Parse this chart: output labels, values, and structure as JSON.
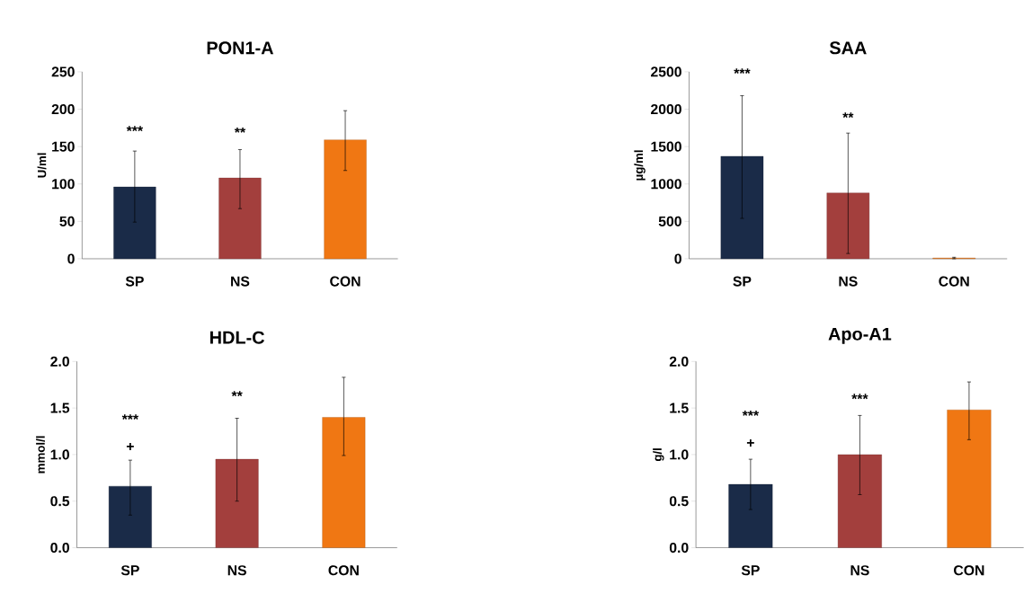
{
  "chart_data": [
    {
      "type": "bar",
      "title": "PON1-A",
      "ylabel": "U/ml",
      "categories": [
        "SP",
        "NS",
        "CON"
      ],
      "values": [
        96,
        108,
        159
      ],
      "colors": [
        "#1a2b48",
        "#a33f3d",
        "#f07713"
      ],
      "errors": [
        [
          49,
          144
        ],
        [
          67,
          146
        ],
        [
          118,
          198
        ]
      ],
      "ylim": [
        0,
        250
      ],
      "yticks": [
        0,
        50,
        100,
        150,
        200,
        250
      ],
      "annotations": [
        "***",
        "**"
      ]
    },
    {
      "type": "bar",
      "title": "SAA",
      "ylabel": "µg/ml",
      "categories": [
        "SP",
        "NS",
        "CON"
      ],
      "values": [
        1370,
        880,
        10
      ],
      "colors": [
        "#1a2b48",
        "#a33f3d",
        "#f07713"
      ],
      "errors": [
        [
          540,
          2180
        ],
        [
          70,
          1680
        ],
        [
          0,
          20
        ]
      ],
      "ylim": [
        0,
        2500
      ],
      "yticks": [
        0,
        500,
        1000,
        1500,
        2000,
        2500
      ],
      "annotations": [
        "***",
        "**"
      ]
    },
    {
      "type": "bar",
      "title": "HDL-C",
      "ylabel": "mmol/l",
      "categories": [
        "SP",
        "NS",
        "CON"
      ],
      "values": [
        0.66,
        0.95,
        1.4
      ],
      "colors": [
        "#1a2b48",
        "#a33f3d",
        "#f07713"
      ],
      "errors": [
        [
          0.35,
          0.94
        ],
        [
          0.5,
          1.39
        ],
        [
          0.99,
          1.83
        ]
      ],
      "ylim": [
        0,
        2
      ],
      "yticks": [
        {
          "value": 0,
          "label": "0.0"
        },
        0.5,
        {
          "value": 1,
          "label": "1.0"
        },
        1.5,
        {
          "value": 2,
          "label": "2.0"
        }
      ],
      "annotations": [
        "***",
        "+",
        "**"
      ]
    },
    {
      "type": "bar",
      "title": "Apo-A1",
      "ylabel": "g/l",
      "categories": [
        "SP",
        "NS",
        "CON"
      ],
      "values": [
        0.68,
        1.0,
        1.48
      ],
      "colors": [
        "#1a2b48",
        "#a33f3d",
        "#f07713"
      ],
      "errors": [
        [
          0.41,
          0.95
        ],
        [
          0.57,
          1.42
        ],
        [
          1.16,
          1.78
        ]
      ],
      "ylim": [
        0,
        2
      ],
      "yticks": [
        {
          "value": 0,
          "label": "0.0"
        },
        0.5,
        {
          "value": 1,
          "label": "1.0"
        },
        1.5,
        {
          "value": 2,
          "label": "2.0"
        }
      ],
      "annotations": [
        "***",
        "+",
        "***"
      ]
    }
  ]
}
